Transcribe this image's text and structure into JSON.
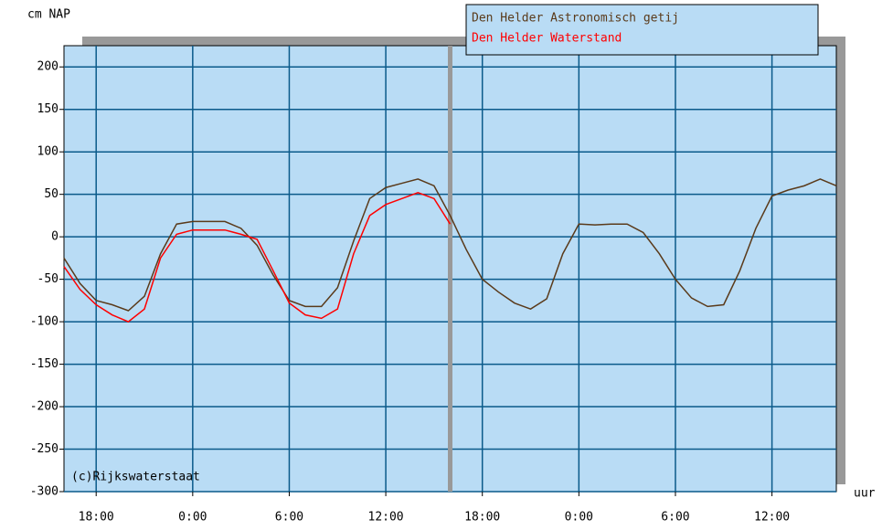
{
  "chart_data": {
    "type": "line",
    "y_label": "cm NAP",
    "x_label": "uur",
    "annotation": "(c)Rijkswaterstaat",
    "x": [
      0,
      1,
      2,
      3,
      4,
      5,
      6,
      7,
      8,
      9,
      10,
      11,
      12,
      13,
      14,
      15,
      16,
      17,
      18,
      19,
      20,
      21,
      22,
      23,
      24,
      25,
      26,
      27,
      28,
      29,
      30,
      31,
      32,
      33,
      34,
      35,
      36,
      37,
      38,
      39,
      40,
      41,
      42,
      43,
      44,
      45,
      46,
      47,
      48
    ],
    "series": [
      {
        "name": "Den Helder Astronomisch getij",
        "color": "#5a3a1a",
        "values": [
          -25,
          -55,
          -75,
          -80,
          -87,
          -70,
          -20,
          15,
          18,
          18,
          18,
          10,
          -10,
          -45,
          -75,
          -82,
          -82,
          -60,
          -5,
          45,
          58,
          63,
          68,
          60,
          25,
          -15,
          -50,
          -65,
          -78,
          -85,
          -73,
          -20,
          15,
          14,
          15,
          15,
          5,
          -20,
          -50,
          -72,
          -82,
          -80,
          -40,
          10,
          48,
          55,
          60,
          68,
          60
        ]
      },
      {
        "name": "Den Helder Waterstand",
        "color": "#ff0000",
        "values": [
          -35,
          -62,
          -80,
          -92,
          -100,
          -85,
          -25,
          3,
          8,
          8,
          8,
          3,
          -3,
          -40,
          -78,
          -92,
          -96,
          -85,
          -20,
          25,
          38,
          45,
          52,
          45,
          15,
          null,
          null,
          null,
          null,
          null,
          null,
          null,
          null,
          null,
          null,
          null,
          null,
          null,
          null,
          null,
          null,
          null,
          null,
          null,
          null,
          null,
          null,
          null,
          null
        ]
      }
    ],
    "xlim": [
      0,
      48
    ],
    "xticks": [
      {
        "value": 2,
        "label": "18:00"
      },
      {
        "value": 8,
        "label": "0:00"
      },
      {
        "value": 14,
        "label": "6:00"
      },
      {
        "value": 20,
        "label": "12:00"
      },
      {
        "value": 26,
        "label": "18:00"
      },
      {
        "value": 32,
        "label": "0:00"
      },
      {
        "value": 38,
        "label": "6:00"
      },
      {
        "value": 44,
        "label": "12:00"
      }
    ],
    "ylim": [
      -300,
      225
    ],
    "yticks": [
      200,
      150,
      100,
      50,
      0,
      -50,
      -100,
      -150,
      -200,
      -250,
      -300
    ],
    "now_line": 24,
    "grid": true
  }
}
